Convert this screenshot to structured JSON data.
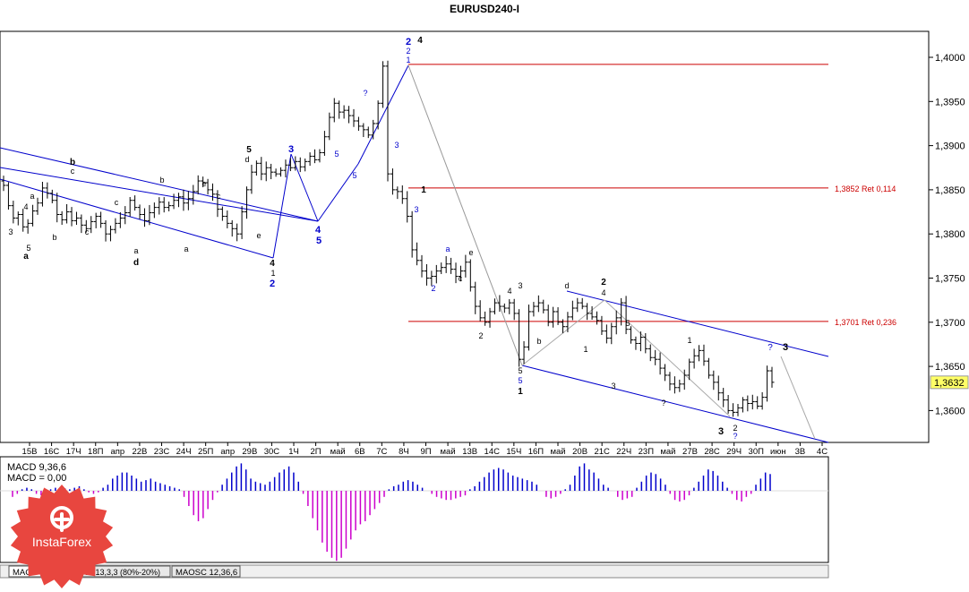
{
  "chart_data": {
    "type": "candlestick",
    "title": "EURUSD240-I",
    "price_axis": {
      "min": 1.356,
      "max": 1.403,
      "ticks": [
        "1,4000",
        "1,3950",
        "1,3900",
        "1,3850",
        "1,3800",
        "1,3750",
        "1,3700",
        "1,3650",
        "1,3600"
      ],
      "tick_values": [
        1.4,
        1.395,
        1.39,
        1.385,
        1.38,
        1.375,
        1.37,
        1.365,
        1.36
      ]
    },
    "current_price": {
      "label": "1,3632",
      "value": 1.3632
    },
    "time_axis": {
      "labels": [
        "15В",
        "16С",
        "17Ч",
        "18П",
        "апр",
        "22В",
        "23С",
        "24Ч",
        "25П",
        "апр",
        "29В",
        "30С",
        "1Ч",
        "2П",
        "май",
        "6В",
        "7С",
        "8Ч",
        "9П",
        "май",
        "13В",
        "14С",
        "15Ч",
        "16П",
        "май",
        "20В",
        "21С",
        "22Ч",
        "23П",
        "май",
        "27В",
        "28С",
        "29Ч",
        "30П",
        "июн",
        "3В",
        "4С"
      ]
    },
    "close_series": [
      1.3855,
      1.3832,
      1.3818,
      1.3822,
      1.3808,
      1.3812,
      1.3826,
      1.3835,
      1.3852,
      1.3846,
      1.3838,
      1.3822,
      1.3816,
      1.3825,
      1.3815,
      1.3818,
      1.381,
      1.3806,
      1.3814,
      1.382,
      1.3812,
      1.38,
      1.3805,
      1.3812,
      1.3818,
      1.3824,
      1.3838,
      1.383,
      1.3822,
      1.3815,
      1.3824,
      1.383,
      1.3836,
      1.383,
      1.3832,
      1.3838,
      1.3842,
      1.3835,
      1.384,
      1.3848,
      1.386,
      1.3858,
      1.385,
      1.3845,
      1.3828,
      1.382,
      1.3812,
      1.3806,
      1.38,
      1.3825,
      1.385,
      1.387,
      1.388,
      1.3868,
      1.3875,
      1.387,
      1.3868,
      1.3872,
      1.3878,
      1.3875,
      1.3882,
      1.3876,
      1.3882,
      1.3888,
      1.3884,
      1.3892,
      1.391,
      1.3932,
      1.3948,
      1.3938,
      1.394,
      1.3934,
      1.3928,
      1.3922,
      1.3918,
      1.3912,
      1.3925,
      1.3948,
      1.399,
      1.3868,
      1.385,
      1.3848,
      1.384,
      1.382,
      1.3782,
      1.377,
      1.3758,
      1.375,
      1.3752,
      1.3758,
      1.3762,
      1.3766,
      1.376,
      1.3752,
      1.3758,
      1.3768,
      1.374,
      1.3718,
      1.3705,
      1.37,
      1.3712,
      1.3722,
      1.3718,
      1.3716,
      1.3722,
      1.371,
      1.3658,
      1.3672,
      1.3712,
      1.3718,
      1.3722,
      1.3714,
      1.37,
      1.3712,
      1.37,
      1.3695,
      1.3706,
      1.3716,
      1.3722,
      1.3718,
      1.371,
      1.3706,
      1.3702,
      1.369,
      1.3682,
      1.3695,
      1.3705,
      1.3722,
      1.3692,
      1.368,
      1.3676,
      1.3683,
      1.367,
      1.366,
      1.3658,
      1.3648,
      1.364,
      1.363,
      1.3626,
      1.363,
      1.364,
      1.3655,
      1.3662,
      1.3668,
      1.3656,
      1.364,
      1.3632,
      1.362,
      1.3612,
      1.36,
      1.3598,
      1.3603,
      1.3612,
      1.3608,
      1.361,
      1.3605,
      1.3615,
      1.3645,
      1.3632
    ],
    "macd": {
      "label": "MACD 9,36,6",
      "value_label": "MACD = 0,00",
      "histogram": [
        -0.2,
        -0.1,
        0.05,
        0.1,
        0.05,
        -0.1,
        -0.15,
        -0.1,
        0.05,
        0.1,
        0.12,
        0.08,
        0.05,
        0.1,
        0.15,
        0.05,
        -0.05,
        -0.1,
        -0.05,
        0.1,
        0.2,
        0.4,
        0.5,
        0.6,
        0.6,
        0.5,
        0.4,
        0.3,
        0.35,
        0.4,
        0.3,
        0.25,
        0.2,
        0.15,
        0.1,
        0.05,
        -0.2,
        -0.5,
        -0.8,
        -1.0,
        -0.9,
        -0.6,
        -0.3,
        -0.05,
        0.2,
        0.4,
        0.6,
        0.8,
        0.9,
        0.7,
        0.4,
        0.3,
        0.25,
        0.2,
        0.3,
        0.45,
        0.6,
        0.7,
        0.8,
        0.6,
        0.3,
        -0.1,
        -0.5,
        -0.9,
        -1.3,
        -1.7,
        -2.0,
        -2.2,
        -2.3,
        -2.2,
        -1.9,
        -1.6,
        -1.3,
        -1.1,
        -1.0,
        -0.8,
        -0.6,
        -0.4,
        -0.2,
        0.05,
        0.15,
        0.2,
        0.3,
        0.35,
        0.3,
        0.2,
        0.1,
        0.0,
        -0.1,
        -0.2,
        -0.25,
        -0.3,
        -0.3,
        -0.25,
        -0.2,
        -0.15,
        0.05,
        0.15,
        0.3,
        0.45,
        0.6,
        0.7,
        0.75,
        0.7,
        0.6,
        0.5,
        0.45,
        0.4,
        0.35,
        0.3,
        0.2,
        0.0,
        -0.2,
        -0.25,
        -0.2,
        -0.1,
        0.05,
        0.2,
        0.5,
        0.8,
        0.9,
        0.7,
        0.6,
        0.4,
        0.2,
        0.1,
        0.0,
        -0.2,
        -0.3,
        -0.25,
        -0.2,
        0.1,
        0.3,
        0.5,
        0.6,
        0.55,
        0.4,
        0.2,
        -0.1,
        -0.3,
        -0.35,
        -0.3,
        -0.15,
        0.1,
        0.3,
        0.5,
        0.7,
        0.65,
        0.5,
        0.3,
        0.1,
        -0.1,
        -0.3,
        -0.35,
        -0.2,
        -0.1,
        0.2,
        0.4,
        0.6,
        0.55
      ]
    },
    "retracements": [
      {
        "label": "1,3852 Ret 0,114",
        "value": 1.3852
      },
      {
        "label": "1,3701 Ret 0,236",
        "value": 1.3701
      }
    ],
    "wave_labels": [
      "3",
      "5",
      "a",
      "a",
      "4",
      "b",
      "b",
      "c",
      "c",
      "c",
      "a",
      "d",
      "b",
      "a",
      "e",
      "c",
      "5",
      "d",
      "e",
      "4",
      "1",
      "2",
      "3",
      "4",
      "5",
      "5",
      "5",
      "?",
      "3",
      "2",
      "2",
      "1",
      "4",
      "3",
      "1",
      "2",
      "a",
      "c",
      "e",
      "2",
      "4",
      "3",
      "5",
      "5",
      "1",
      "b",
      "d",
      "1",
      "2",
      "4",
      "3",
      "5",
      "1",
      "?",
      "2",
      "?",
      "3",
      "?",
      "3"
    ],
    "indicator_tabs": [
      "MACD 9,36,6",
      "Stoch 13,3,3 (80%-20%)",
      "MAOSC 12,36,6"
    ],
    "colors": {
      "line_blue": "#0000cc",
      "ret_red": "#cc0000",
      "hist_blue": "#0000cc",
      "hist_magenta": "#cc00cc",
      "logo_red": "#e8463f",
      "current_price_bg": "#ffff66"
    }
  },
  "logo": {
    "text": "InstaForex"
  }
}
